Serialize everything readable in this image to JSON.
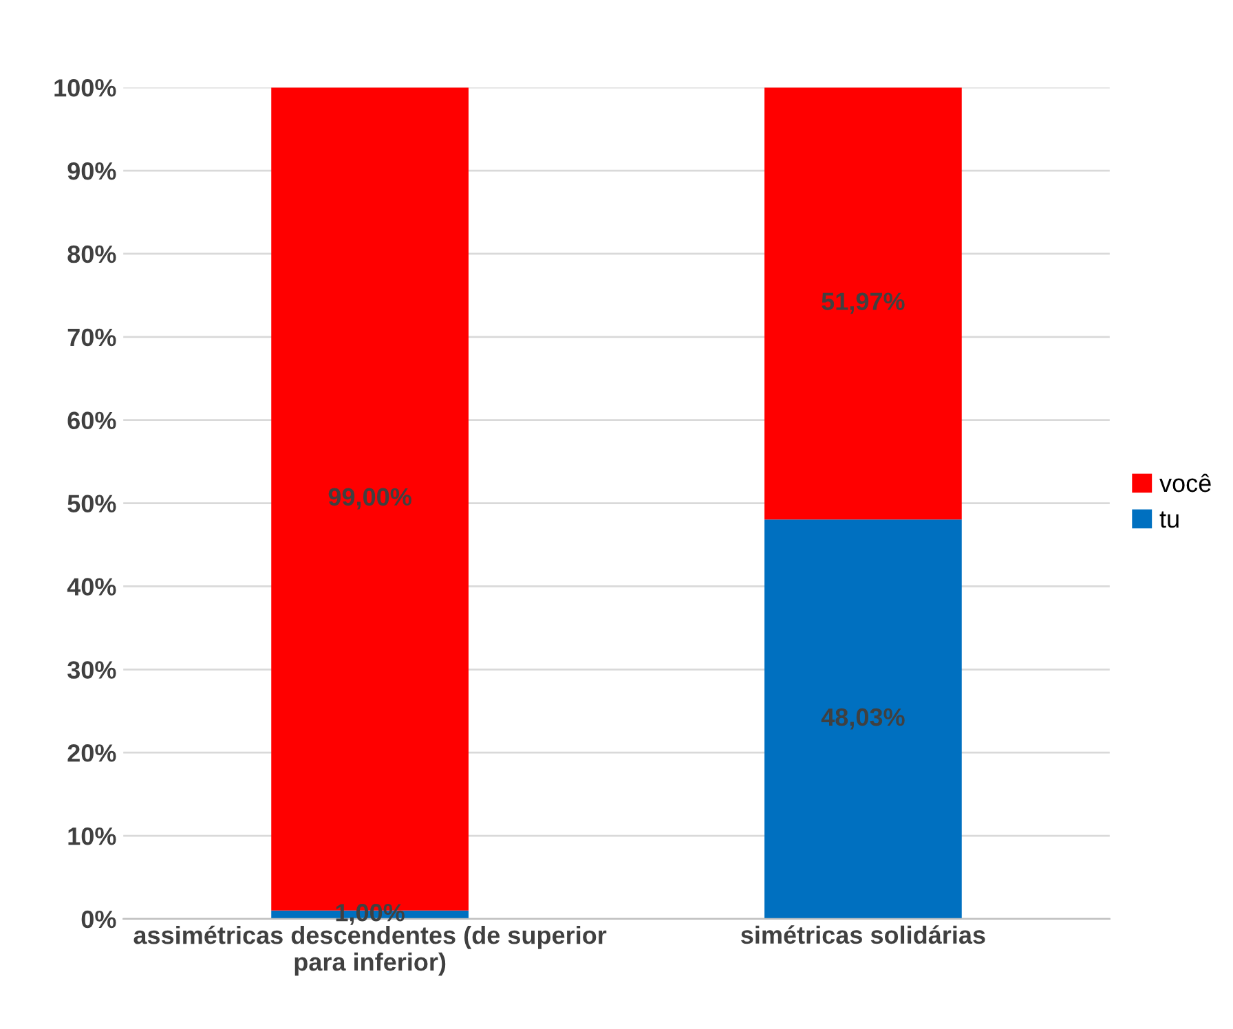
{
  "chart_data": {
    "type": "bar",
    "stacked": true,
    "categories": [
      "assimétricas descendentes (de superior\npara inferior)",
      "simétricas solidárias"
    ],
    "series": [
      {
        "name": "tu",
        "color": "#0070c0",
        "values": [
          1.0,
          48.03
        ],
        "value_labels": [
          "1,00%",
          "48,03%"
        ]
      },
      {
        "name": "você",
        "color": "#ff0000",
        "values": [
          99.0,
          51.97
        ],
        "value_labels": [
          "99,00%",
          "51,97%"
        ]
      }
    ],
    "ylim": [
      0,
      100
    ],
    "yticks": [
      {
        "value": 0,
        "label": "0%"
      },
      {
        "value": 10,
        "label": "10%"
      },
      {
        "value": 20,
        "label": "20%"
      },
      {
        "value": 30,
        "label": "30%"
      },
      {
        "value": 40,
        "label": "40%"
      },
      {
        "value": 50,
        "label": "50%"
      },
      {
        "value": 60,
        "label": "60%"
      },
      {
        "value": 70,
        "label": "70%"
      },
      {
        "value": 80,
        "label": "80%"
      },
      {
        "value": 90,
        "label": "90%"
      },
      {
        "value": 100,
        "label": "100%"
      }
    ],
    "grid": "y",
    "legend": "right"
  }
}
